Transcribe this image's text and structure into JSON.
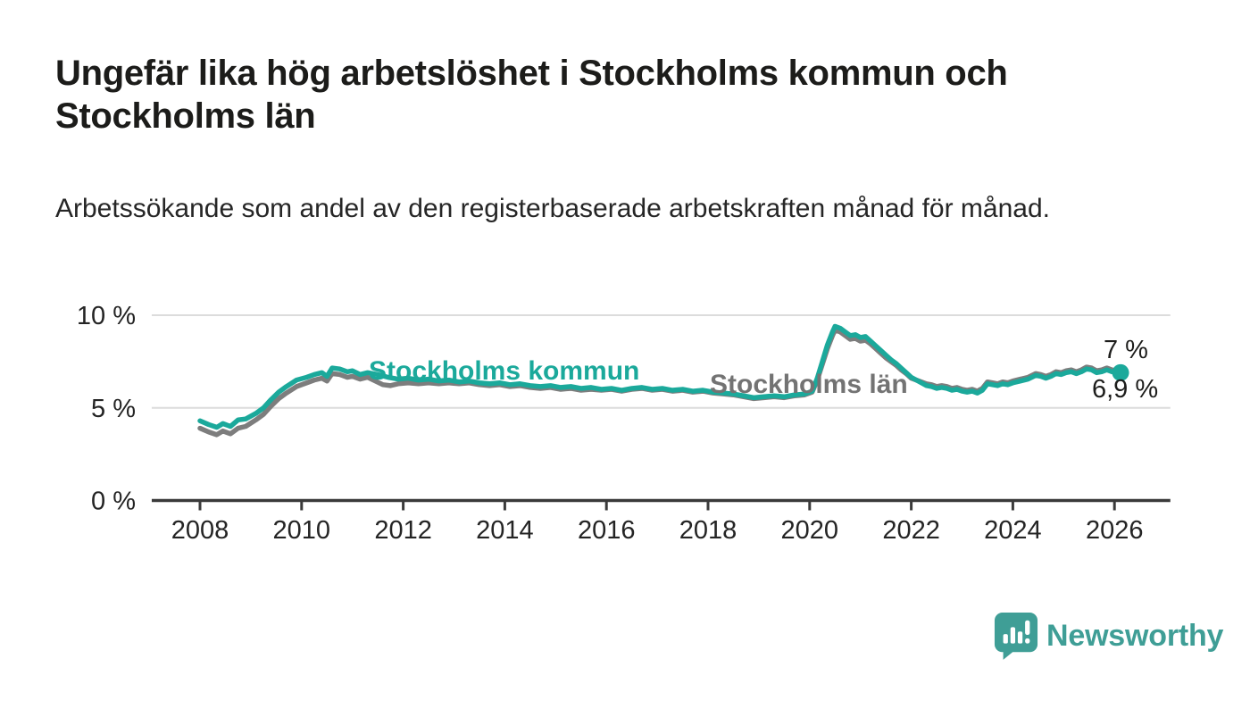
{
  "header": {
    "title": "Ungefär lika hög arbetslöshet i Stockholms kommun och Stockholms län",
    "subtitle": "Arbetssökande som andel av den registerbaserade arbetskraften månad för månad."
  },
  "colors": {
    "kommun": "#1ba99b",
    "lan": "#7d7d7d",
    "grid": "#dcdcdc",
    "axis": "#3a3a3a",
    "tick_text": "#242424",
    "logo": "#3f9e96"
  },
  "chart_data": {
    "type": "line",
    "unit": "%",
    "title": "",
    "xlabel": "",
    "ylabel": "",
    "ylim": [
      0,
      10
    ],
    "xlim": [
      2007.05,
      2027.1
    ],
    "grid": "horizontal",
    "legend_position": "inline-labels",
    "y_ticks": [
      {
        "value": 0,
        "label": "0 %"
      },
      {
        "value": 5,
        "label": "5 %"
      },
      {
        "value": 10,
        "label": "10 %"
      }
    ],
    "x_ticks": [
      {
        "value": 2008,
        "label": "2008"
      },
      {
        "value": 2010,
        "label": "2010"
      },
      {
        "value": 2012,
        "label": "2012"
      },
      {
        "value": 2014,
        "label": "2014"
      },
      {
        "value": 2016,
        "label": "2016"
      },
      {
        "value": 2018,
        "label": "2018"
      },
      {
        "value": 2020,
        "label": "2020"
      },
      {
        "value": 2022,
        "label": "2022"
      },
      {
        "value": 2024,
        "label": "2024"
      },
      {
        "value": 2026,
        "label": "2026"
      }
    ],
    "series": [
      {
        "name": "Stockholms län",
        "color_key": "lan",
        "end_label": "7 %",
        "end_dot": false,
        "points": [
          [
            2008.0,
            3.9
          ],
          [
            2008.17,
            3.7
          ],
          [
            2008.33,
            3.55
          ],
          [
            2008.45,
            3.75
          ],
          [
            2008.6,
            3.6
          ],
          [
            2008.75,
            3.9
          ],
          [
            2008.9,
            4.0
          ],
          [
            2009.1,
            4.35
          ],
          [
            2009.25,
            4.65
          ],
          [
            2009.4,
            5.1
          ],
          [
            2009.55,
            5.5
          ],
          [
            2009.7,
            5.8
          ],
          [
            2009.9,
            6.15
          ],
          [
            2010.1,
            6.35
          ],
          [
            2010.25,
            6.5
          ],
          [
            2010.4,
            6.6
          ],
          [
            2010.5,
            6.45
          ],
          [
            2010.6,
            6.85
          ],
          [
            2010.75,
            6.8
          ],
          [
            2010.9,
            6.65
          ],
          [
            2011.0,
            6.7
          ],
          [
            2011.15,
            6.55
          ],
          [
            2011.3,
            6.65
          ],
          [
            2011.45,
            6.45
          ],
          [
            2011.6,
            6.25
          ],
          [
            2011.75,
            6.2
          ],
          [
            2011.9,
            6.3
          ],
          [
            2012.1,
            6.35
          ],
          [
            2012.3,
            6.3
          ],
          [
            2012.5,
            6.35
          ],
          [
            2012.7,
            6.3
          ],
          [
            2012.9,
            6.35
          ],
          [
            2013.1,
            6.3
          ],
          [
            2013.3,
            6.35
          ],
          [
            2013.5,
            6.25
          ],
          [
            2013.7,
            6.2
          ],
          [
            2013.9,
            6.25
          ],
          [
            2014.1,
            6.15
          ],
          [
            2014.3,
            6.2
          ],
          [
            2014.5,
            6.1
          ],
          [
            2014.7,
            6.05
          ],
          [
            2014.9,
            6.1
          ],
          [
            2015.1,
            6.0
          ],
          [
            2015.3,
            6.05
          ],
          [
            2015.5,
            5.95
          ],
          [
            2015.7,
            6.0
          ],
          [
            2015.9,
            5.95
          ],
          [
            2016.1,
            6.0
          ],
          [
            2016.3,
            5.9
          ],
          [
            2016.5,
            6.0
          ],
          [
            2016.7,
            6.05
          ],
          [
            2016.9,
            5.95
          ],
          [
            2017.1,
            6.0
          ],
          [
            2017.3,
            5.9
          ],
          [
            2017.5,
            5.95
          ],
          [
            2017.7,
            5.85
          ],
          [
            2017.9,
            5.9
          ],
          [
            2018.1,
            5.8
          ],
          [
            2018.3,
            5.75
          ],
          [
            2018.5,
            5.7
          ],
          [
            2018.7,
            5.6
          ],
          [
            2018.9,
            5.5
          ],
          [
            2019.1,
            5.55
          ],
          [
            2019.3,
            5.6
          ],
          [
            2019.5,
            5.55
          ],
          [
            2019.7,
            5.65
          ],
          [
            2019.9,
            5.7
          ],
          [
            2020.05,
            5.85
          ],
          [
            2020.15,
            6.5
          ],
          [
            2020.25,
            7.35
          ],
          [
            2020.35,
            8.2
          ],
          [
            2020.45,
            8.9
          ],
          [
            2020.5,
            9.2
          ],
          [
            2020.6,
            9.1
          ],
          [
            2020.7,
            8.9
          ],
          [
            2020.8,
            8.7
          ],
          [
            2020.9,
            8.75
          ],
          [
            2021.0,
            8.6
          ],
          [
            2021.1,
            8.65
          ],
          [
            2021.2,
            8.45
          ],
          [
            2021.3,
            8.2
          ],
          [
            2021.4,
            7.95
          ],
          [
            2021.5,
            7.7
          ],
          [
            2021.6,
            7.5
          ],
          [
            2021.7,
            7.3
          ],
          [
            2021.8,
            7.05
          ],
          [
            2021.9,
            6.85
          ],
          [
            2022.0,
            6.6
          ],
          [
            2022.1,
            6.5
          ],
          [
            2022.2,
            6.4
          ],
          [
            2022.3,
            6.3
          ],
          [
            2022.4,
            6.25
          ],
          [
            2022.5,
            6.15
          ],
          [
            2022.6,
            6.2
          ],
          [
            2022.7,
            6.15
          ],
          [
            2022.8,
            6.05
          ],
          [
            2022.9,
            6.1
          ],
          [
            2023.0,
            6.0
          ],
          [
            2023.1,
            5.95
          ],
          [
            2023.2,
            6.0
          ],
          [
            2023.3,
            5.9
          ],
          [
            2023.4,
            6.05
          ],
          [
            2023.5,
            6.4
          ],
          [
            2023.6,
            6.35
          ],
          [
            2023.7,
            6.3
          ],
          [
            2023.8,
            6.4
          ],
          [
            2023.9,
            6.35
          ],
          [
            2024.0,
            6.45
          ],
          [
            2024.15,
            6.55
          ],
          [
            2024.3,
            6.65
          ],
          [
            2024.45,
            6.85
          ],
          [
            2024.55,
            6.8
          ],
          [
            2024.65,
            6.7
          ],
          [
            2024.75,
            6.8
          ],
          [
            2024.85,
            6.95
          ],
          [
            2024.95,
            6.9
          ],
          [
            2025.05,
            7.0
          ],
          [
            2025.15,
            7.05
          ],
          [
            2025.25,
            6.95
          ],
          [
            2025.35,
            7.05
          ],
          [
            2025.45,
            7.2
          ],
          [
            2025.55,
            7.15
          ],
          [
            2025.65,
            7.0
          ],
          [
            2025.75,
            7.05
          ],
          [
            2025.85,
            7.15
          ],
          [
            2025.95,
            7.05
          ],
          [
            2026.05,
            7.0
          ],
          [
            2026.12,
            7.0
          ]
        ]
      },
      {
        "name": "Stockholms kommun",
        "color_key": "kommun",
        "end_label": "6,9 %",
        "end_dot": true,
        "points": [
          [
            2008.0,
            4.3
          ],
          [
            2008.17,
            4.1
          ],
          [
            2008.33,
            3.95
          ],
          [
            2008.45,
            4.15
          ],
          [
            2008.6,
            4.0
          ],
          [
            2008.75,
            4.35
          ],
          [
            2008.9,
            4.4
          ],
          [
            2009.1,
            4.7
          ],
          [
            2009.25,
            5.0
          ],
          [
            2009.4,
            5.45
          ],
          [
            2009.55,
            5.85
          ],
          [
            2009.7,
            6.15
          ],
          [
            2009.9,
            6.5
          ],
          [
            2010.1,
            6.65
          ],
          [
            2010.25,
            6.8
          ],
          [
            2010.4,
            6.9
          ],
          [
            2010.5,
            6.7
          ],
          [
            2010.6,
            7.15
          ],
          [
            2010.75,
            7.1
          ],
          [
            2010.9,
            6.95
          ],
          [
            2011.0,
            7.0
          ],
          [
            2011.15,
            6.8
          ],
          [
            2011.3,
            6.9
          ],
          [
            2011.5,
            6.8
          ],
          [
            2011.7,
            6.65
          ],
          [
            2011.9,
            6.55
          ],
          [
            2012.1,
            6.6
          ],
          [
            2012.3,
            6.5
          ],
          [
            2012.5,
            6.55
          ],
          [
            2012.7,
            6.45
          ],
          [
            2012.9,
            6.5
          ],
          [
            2013.1,
            6.4
          ],
          [
            2013.3,
            6.45
          ],
          [
            2013.5,
            6.35
          ],
          [
            2013.7,
            6.3
          ],
          [
            2013.9,
            6.35
          ],
          [
            2014.1,
            6.25
          ],
          [
            2014.3,
            6.3
          ],
          [
            2014.5,
            6.2
          ],
          [
            2014.7,
            6.15
          ],
          [
            2014.9,
            6.2
          ],
          [
            2015.1,
            6.1
          ],
          [
            2015.3,
            6.15
          ],
          [
            2015.5,
            6.05
          ],
          [
            2015.7,
            6.1
          ],
          [
            2015.9,
            6.0
          ],
          [
            2016.1,
            6.05
          ],
          [
            2016.3,
            5.95
          ],
          [
            2016.5,
            6.05
          ],
          [
            2016.7,
            6.1
          ],
          [
            2016.9,
            6.0
          ],
          [
            2017.1,
            6.05
          ],
          [
            2017.3,
            5.95
          ],
          [
            2017.5,
            6.0
          ],
          [
            2017.7,
            5.9
          ],
          [
            2017.9,
            5.95
          ],
          [
            2018.1,
            5.85
          ],
          [
            2018.3,
            5.8
          ],
          [
            2018.5,
            5.75
          ],
          [
            2018.7,
            5.65
          ],
          [
            2018.9,
            5.55
          ],
          [
            2019.1,
            5.6
          ],
          [
            2019.3,
            5.65
          ],
          [
            2019.5,
            5.6
          ],
          [
            2019.7,
            5.7
          ],
          [
            2019.9,
            5.75
          ],
          [
            2020.05,
            5.9
          ],
          [
            2020.15,
            6.6
          ],
          [
            2020.25,
            7.5
          ],
          [
            2020.35,
            8.4
          ],
          [
            2020.45,
            9.1
          ],
          [
            2020.5,
            9.4
          ],
          [
            2020.6,
            9.3
          ],
          [
            2020.7,
            9.1
          ],
          [
            2020.8,
            8.9
          ],
          [
            2020.9,
            8.95
          ],
          [
            2021.0,
            8.8
          ],
          [
            2021.1,
            8.85
          ],
          [
            2021.2,
            8.6
          ],
          [
            2021.3,
            8.35
          ],
          [
            2021.4,
            8.1
          ],
          [
            2021.5,
            7.85
          ],
          [
            2021.6,
            7.6
          ],
          [
            2021.7,
            7.4
          ],
          [
            2021.8,
            7.15
          ],
          [
            2021.9,
            6.9
          ],
          [
            2022.0,
            6.65
          ],
          [
            2022.1,
            6.5
          ],
          [
            2022.2,
            6.35
          ],
          [
            2022.3,
            6.2
          ],
          [
            2022.4,
            6.15
          ],
          [
            2022.5,
            6.05
          ],
          [
            2022.6,
            6.1
          ],
          [
            2022.7,
            6.05
          ],
          [
            2022.8,
            5.95
          ],
          [
            2022.9,
            6.0
          ],
          [
            2023.0,
            5.9
          ],
          [
            2023.1,
            5.85
          ],
          [
            2023.2,
            5.9
          ],
          [
            2023.3,
            5.8
          ],
          [
            2023.4,
            5.95
          ],
          [
            2023.5,
            6.3
          ],
          [
            2023.6,
            6.25
          ],
          [
            2023.7,
            6.2
          ],
          [
            2023.8,
            6.3
          ],
          [
            2023.9,
            6.25
          ],
          [
            2024.0,
            6.35
          ],
          [
            2024.15,
            6.45
          ],
          [
            2024.3,
            6.55
          ],
          [
            2024.45,
            6.75
          ],
          [
            2024.55,
            6.7
          ],
          [
            2024.65,
            6.6
          ],
          [
            2024.75,
            6.7
          ],
          [
            2024.85,
            6.85
          ],
          [
            2024.95,
            6.8
          ],
          [
            2025.05,
            6.9
          ],
          [
            2025.15,
            6.95
          ],
          [
            2025.25,
            6.85
          ],
          [
            2025.35,
            6.95
          ],
          [
            2025.45,
            7.1
          ],
          [
            2025.55,
            7.05
          ],
          [
            2025.65,
            6.9
          ],
          [
            2025.75,
            6.95
          ],
          [
            2025.85,
            7.05
          ],
          [
            2025.95,
            6.95
          ],
          [
            2026.05,
            6.9
          ],
          [
            2026.12,
            6.9
          ]
        ]
      }
    ]
  },
  "footer": {
    "brand": "Newsworthy"
  }
}
